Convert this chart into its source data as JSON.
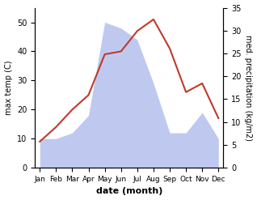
{
  "months": [
    "Jan",
    "Feb",
    "Mar",
    "Apr",
    "May",
    "Jun",
    "Jul",
    "Aug",
    "Sep",
    "Oct",
    "Nov",
    "Dec"
  ],
  "max_temp": [
    9,
    14,
    20,
    25,
    39,
    40,
    47,
    51,
    41,
    26,
    29,
    17
  ],
  "precipitation_left_scale": [
    10,
    10,
    12,
    18,
    50,
    48,
    44,
    29,
    12,
    12,
    19,
    10
  ],
  "temp_color": "#c0392b",
  "precip_fill_color": "#bfc9f0",
  "left_ylim": [
    0,
    55
  ],
  "right_ylim": [
    0,
    35
  ],
  "left_yticks": [
    0,
    10,
    20,
    30,
    40,
    50
  ],
  "right_yticks": [
    0,
    5,
    10,
    15,
    20,
    25,
    30,
    35
  ],
  "xlabel": "date (month)",
  "ylabel_left": "max temp (C)",
  "ylabel_right": "med. precipitation (kg/m2)"
}
